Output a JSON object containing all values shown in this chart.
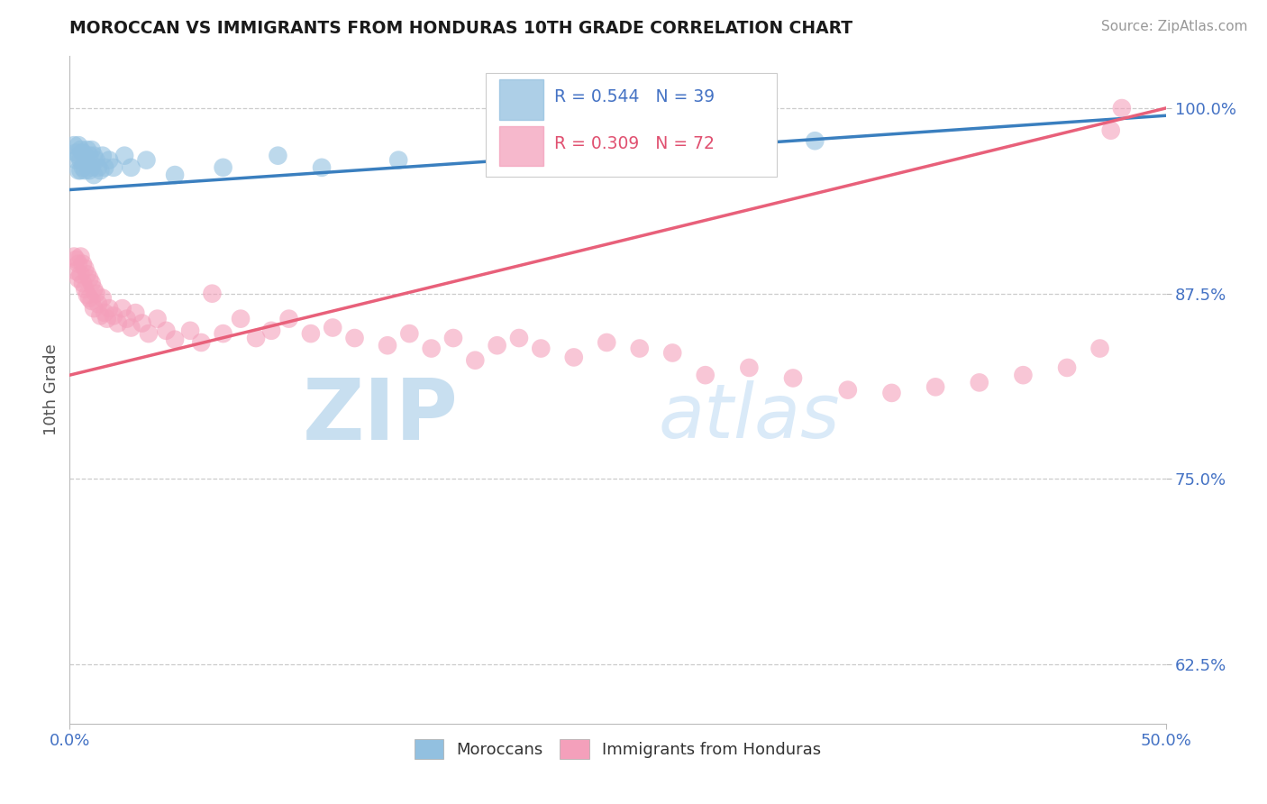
{
  "title": "MOROCCAN VS IMMIGRANTS FROM HONDURAS 10TH GRADE CORRELATION CHART",
  "source": "Source: ZipAtlas.com",
  "ylabel": "10th Grade",
  "legend_blue_label": "Moroccans",
  "legend_pink_label": "Immigrants from Honduras",
  "R_blue_text": "R = 0.544",
  "N_blue_text": "N = 39",
  "R_pink_text": "R = 0.309",
  "N_pink_text": "N = 72",
  "blue_color": "#92c0e0",
  "pink_color": "#f4a0bb",
  "blue_line_color": "#3a7fbf",
  "pink_line_color": "#e8607a",
  "background_color": "#ffffff",
  "blue_points_x": [
    0.002,
    0.003,
    0.003,
    0.004,
    0.004,
    0.004,
    0.005,
    0.005,
    0.005,
    0.006,
    0.006,
    0.007,
    0.007,
    0.008,
    0.008,
    0.009,
    0.009,
    0.01,
    0.01,
    0.011,
    0.011,
    0.012,
    0.013,
    0.014,
    0.015,
    0.016,
    0.018,
    0.02,
    0.025,
    0.028,
    0.035,
    0.048,
    0.07,
    0.095,
    0.115,
    0.15,
    0.2,
    0.27,
    0.34
  ],
  "blue_points_y": [
    0.975,
    0.97,
    0.965,
    0.975,
    0.968,
    0.958,
    0.972,
    0.965,
    0.958,
    0.97,
    0.96,
    0.968,
    0.958,
    0.972,
    0.962,
    0.968,
    0.958,
    0.972,
    0.96,
    0.968,
    0.955,
    0.965,
    0.96,
    0.958,
    0.968,
    0.96,
    0.965,
    0.96,
    0.968,
    0.96,
    0.965,
    0.955,
    0.96,
    0.968,
    0.96,
    0.965,
    0.972,
    0.975,
    0.978
  ],
  "pink_points_x": [
    0.002,
    0.003,
    0.003,
    0.004,
    0.004,
    0.005,
    0.005,
    0.006,
    0.006,
    0.007,
    0.007,
    0.008,
    0.008,
    0.009,
    0.009,
    0.01,
    0.01,
    0.011,
    0.011,
    0.012,
    0.013,
    0.014,
    0.015,
    0.016,
    0.017,
    0.018,
    0.02,
    0.022,
    0.024,
    0.026,
    0.028,
    0.03,
    0.033,
    0.036,
    0.04,
    0.044,
    0.048,
    0.055,
    0.06,
    0.065,
    0.07,
    0.078,
    0.085,
    0.092,
    0.1,
    0.11,
    0.12,
    0.13,
    0.145,
    0.155,
    0.165,
    0.175,
    0.185,
    0.195,
    0.205,
    0.215,
    0.23,
    0.245,
    0.26,
    0.275,
    0.29,
    0.31,
    0.33,
    0.355,
    0.375,
    0.395,
    0.415,
    0.435,
    0.455,
    0.47,
    0.475,
    0.48
  ],
  "pink_points_y": [
    0.9,
    0.898,
    0.89,
    0.895,
    0.885,
    0.9,
    0.888,
    0.895,
    0.882,
    0.892,
    0.878,
    0.888,
    0.874,
    0.885,
    0.872,
    0.882,
    0.87,
    0.878,
    0.865,
    0.875,
    0.868,
    0.86,
    0.872,
    0.862,
    0.858,
    0.865,
    0.86,
    0.855,
    0.865,
    0.858,
    0.852,
    0.862,
    0.855,
    0.848,
    0.858,
    0.85,
    0.844,
    0.85,
    0.842,
    0.875,
    0.848,
    0.858,
    0.845,
    0.85,
    0.858,
    0.848,
    0.852,
    0.845,
    0.84,
    0.848,
    0.838,
    0.845,
    0.83,
    0.84,
    0.845,
    0.838,
    0.832,
    0.842,
    0.838,
    0.835,
    0.82,
    0.825,
    0.818,
    0.81,
    0.808,
    0.812,
    0.815,
    0.82,
    0.825,
    0.838,
    0.985,
    1.0
  ],
  "blue_line_x": [
    0.0,
    0.5
  ],
  "blue_line_y": [
    0.945,
    0.995
  ],
  "pink_line_x": [
    0.0,
    0.5
  ],
  "pink_line_y": [
    0.82,
    1.0
  ],
  "xlim": [
    0.0,
    0.5
  ],
  "ylim": [
    0.585,
    1.035
  ],
  "yticks": [
    0.625,
    0.75,
    0.875,
    1.0
  ],
  "ytick_labels": [
    "62.5%",
    "75.0%",
    "87.5%",
    "100.0%"
  ],
  "xticks": [
    0.0,
    0.5
  ],
  "xtick_labels": [
    "0.0%",
    "50.0%"
  ]
}
